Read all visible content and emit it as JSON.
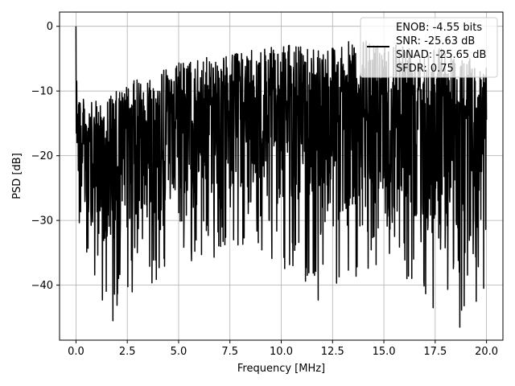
{
  "chart_data": {
    "type": "line",
    "title": "",
    "xlabel": "Frequency [MHz]",
    "ylabel": "PSD [dB]",
    "xlim": [
      -0.8,
      20.8
    ],
    "ylim": [
      -48.5,
      2.2
    ],
    "x_ticks": [
      0.0,
      2.5,
      5.0,
      7.5,
      10.0,
      12.5,
      15.0,
      17.5,
      20.0
    ],
    "x_tick_labels": [
      "0.0",
      "2.5",
      "5.0",
      "7.5",
      "10.0",
      "12.5",
      "15.0",
      "17.5",
      "20.0"
    ],
    "y_ticks": [
      0,
      -10,
      -20,
      -30,
      -40
    ],
    "y_tick_labels": [
      "0",
      "−10",
      "−20",
      "−30",
      "−40"
    ],
    "grid": true,
    "legend_position": "top-right",
    "legend_entries": [
      "ENOB: -4.55 bits",
      "SNR: -25.63 dB",
      "SINAD: -25.65 dB",
      "SFDR: 0.75"
    ],
    "series": [
      {
        "color": "#000000",
        "x_range": [
          0.0,
          20.0
        ],
        "points": 1600,
        "envelope": {
          "x": [
            0.0,
            0.1,
            0.5,
            1.0,
            2.0,
            3.0,
            4.0,
            5.0,
            6.0,
            8.0,
            10.0,
            12.5,
            15.0,
            17.5,
            20.0
          ],
          "upper": [
            0.0,
            -9.5,
            -12.0,
            -11.5,
            -10.0,
            -8.0,
            -7.0,
            -5.5,
            -5.0,
            -4.0,
            -3.0,
            -2.5,
            -2.0,
            -2.5,
            -6.0
          ],
          "lower": [
            -23.0,
            -30.0,
            -38.0,
            -42.0,
            -45.5,
            -40.0,
            -40.0,
            -36.0,
            -37.0,
            -35.0,
            -38.0,
            -42.3,
            -36.0,
            -43.5,
            -46.5
          ]
        },
        "notable_points": [
          {
            "x": 0.0,
            "y": 0.0
          },
          {
            "x": 11.8,
            "y": -42.3
          },
          {
            "x": 17.4,
            "y": -43.5
          },
          {
            "x": 18.7,
            "y": -46.5
          },
          {
            "x": 1.8,
            "y": -45.5
          }
        ]
      }
    ]
  }
}
